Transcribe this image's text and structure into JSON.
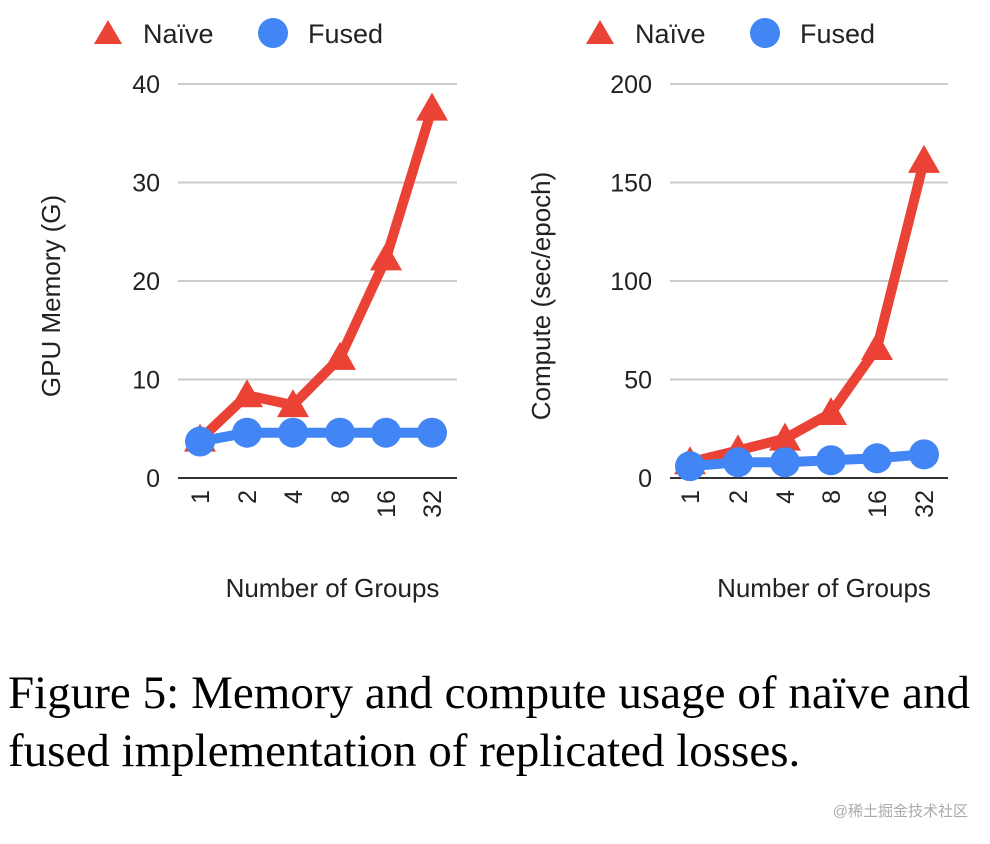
{
  "chart_data": [
    {
      "type": "line",
      "categories": [
        "1",
        "2",
        "4",
        "8",
        "16",
        "32"
      ],
      "xlabel": "Number of Groups",
      "ylabel": "GPU Memory (G)",
      "ylim": [
        0,
        40
      ],
      "yticks": [
        0,
        10,
        20,
        30,
        40
      ],
      "grid": true,
      "legend": "top",
      "series": [
        {
          "name": "Naïve",
          "marker": "triangle",
          "color": "#ea4335",
          "values": [
            3.9,
            8.4,
            7.4,
            12.2,
            22.3,
            37.5
          ]
        },
        {
          "name": "Fused",
          "marker": "circle",
          "color": "#4285f4",
          "values": [
            3.7,
            4.6,
            4.6,
            4.6,
            4.6,
            4.6
          ]
        }
      ]
    },
    {
      "type": "line",
      "categories": [
        "1",
        "2",
        "4",
        "8",
        "16",
        "32"
      ],
      "xlabel": "Number of Groups",
      "ylabel": "Compute (sec/epoch)",
      "ylim": [
        0,
        200
      ],
      "yticks": [
        0,
        50,
        100,
        150,
        200
      ],
      "grid": true,
      "legend": "top",
      "series": [
        {
          "name": "Naïve",
          "marker": "triangle",
          "color": "#ea4335",
          "values": [
            8,
            14,
            20,
            33,
            66,
            161
          ]
        },
        {
          "name": "Fused",
          "marker": "circle",
          "color": "#4285f4",
          "values": [
            6,
            8,
            8,
            9,
            10,
            12
          ]
        }
      ]
    }
  ],
  "caption": "Figure 5:  Memory and compute usage of naïve and fused implementation of replicated losses.",
  "watermark": "@稀土掘金技术社区"
}
